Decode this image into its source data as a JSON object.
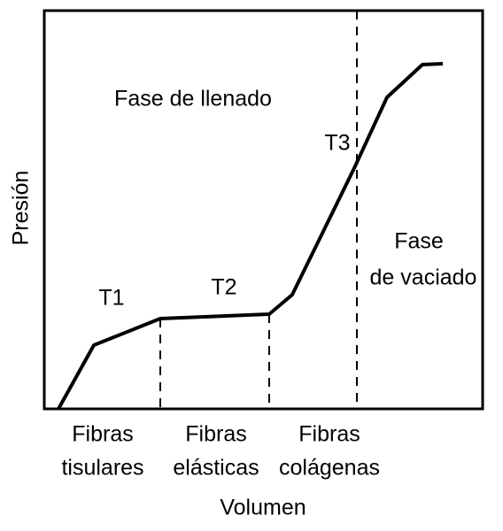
{
  "annotations": {
    "filling_phase": "Fase de llenado",
    "emptying_phase": [
      "Fase",
      "de vaciado"
    ],
    "t1": "T1",
    "t2": "T2",
    "t3": "T3"
  },
  "x_axis": {
    "label": "Volumen",
    "categories": [
      [
        "Fibras",
        "tisulares"
      ],
      [
        "Fibras",
        "elásticas"
      ],
      [
        "Fibras",
        "colágenas"
      ]
    ]
  },
  "y_axis": {
    "label": "Presión"
  }
}
